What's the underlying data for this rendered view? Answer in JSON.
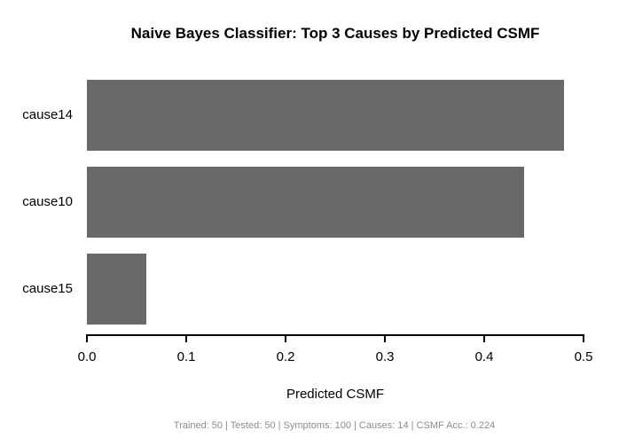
{
  "chart_data": {
    "type": "bar",
    "orientation": "horizontal",
    "title": "Naive Bayes Classifier: Top 3 Causes by Predicted CSMF",
    "categories": [
      "cause14",
      "cause10",
      "cause15"
    ],
    "values": [
      0.48,
      0.44,
      0.06
    ],
    "xlabel": "Predicted CSMF",
    "xlim": [
      0.0,
      0.5
    ],
    "xtick_labels": [
      "0.0",
      "0.1",
      "0.2",
      "0.3",
      "0.4",
      "0.5"
    ],
    "grid": false,
    "legend": false,
    "bar_color": "#696969",
    "axis_color": "#000000",
    "title_color": "#000000"
  },
  "footer": {
    "text": "Trained: 50 | Tested: 50 | Symptoms: 100 | Causes: 14 | CSMF Acc.: 0.224",
    "color": "#8c8c8c"
  }
}
